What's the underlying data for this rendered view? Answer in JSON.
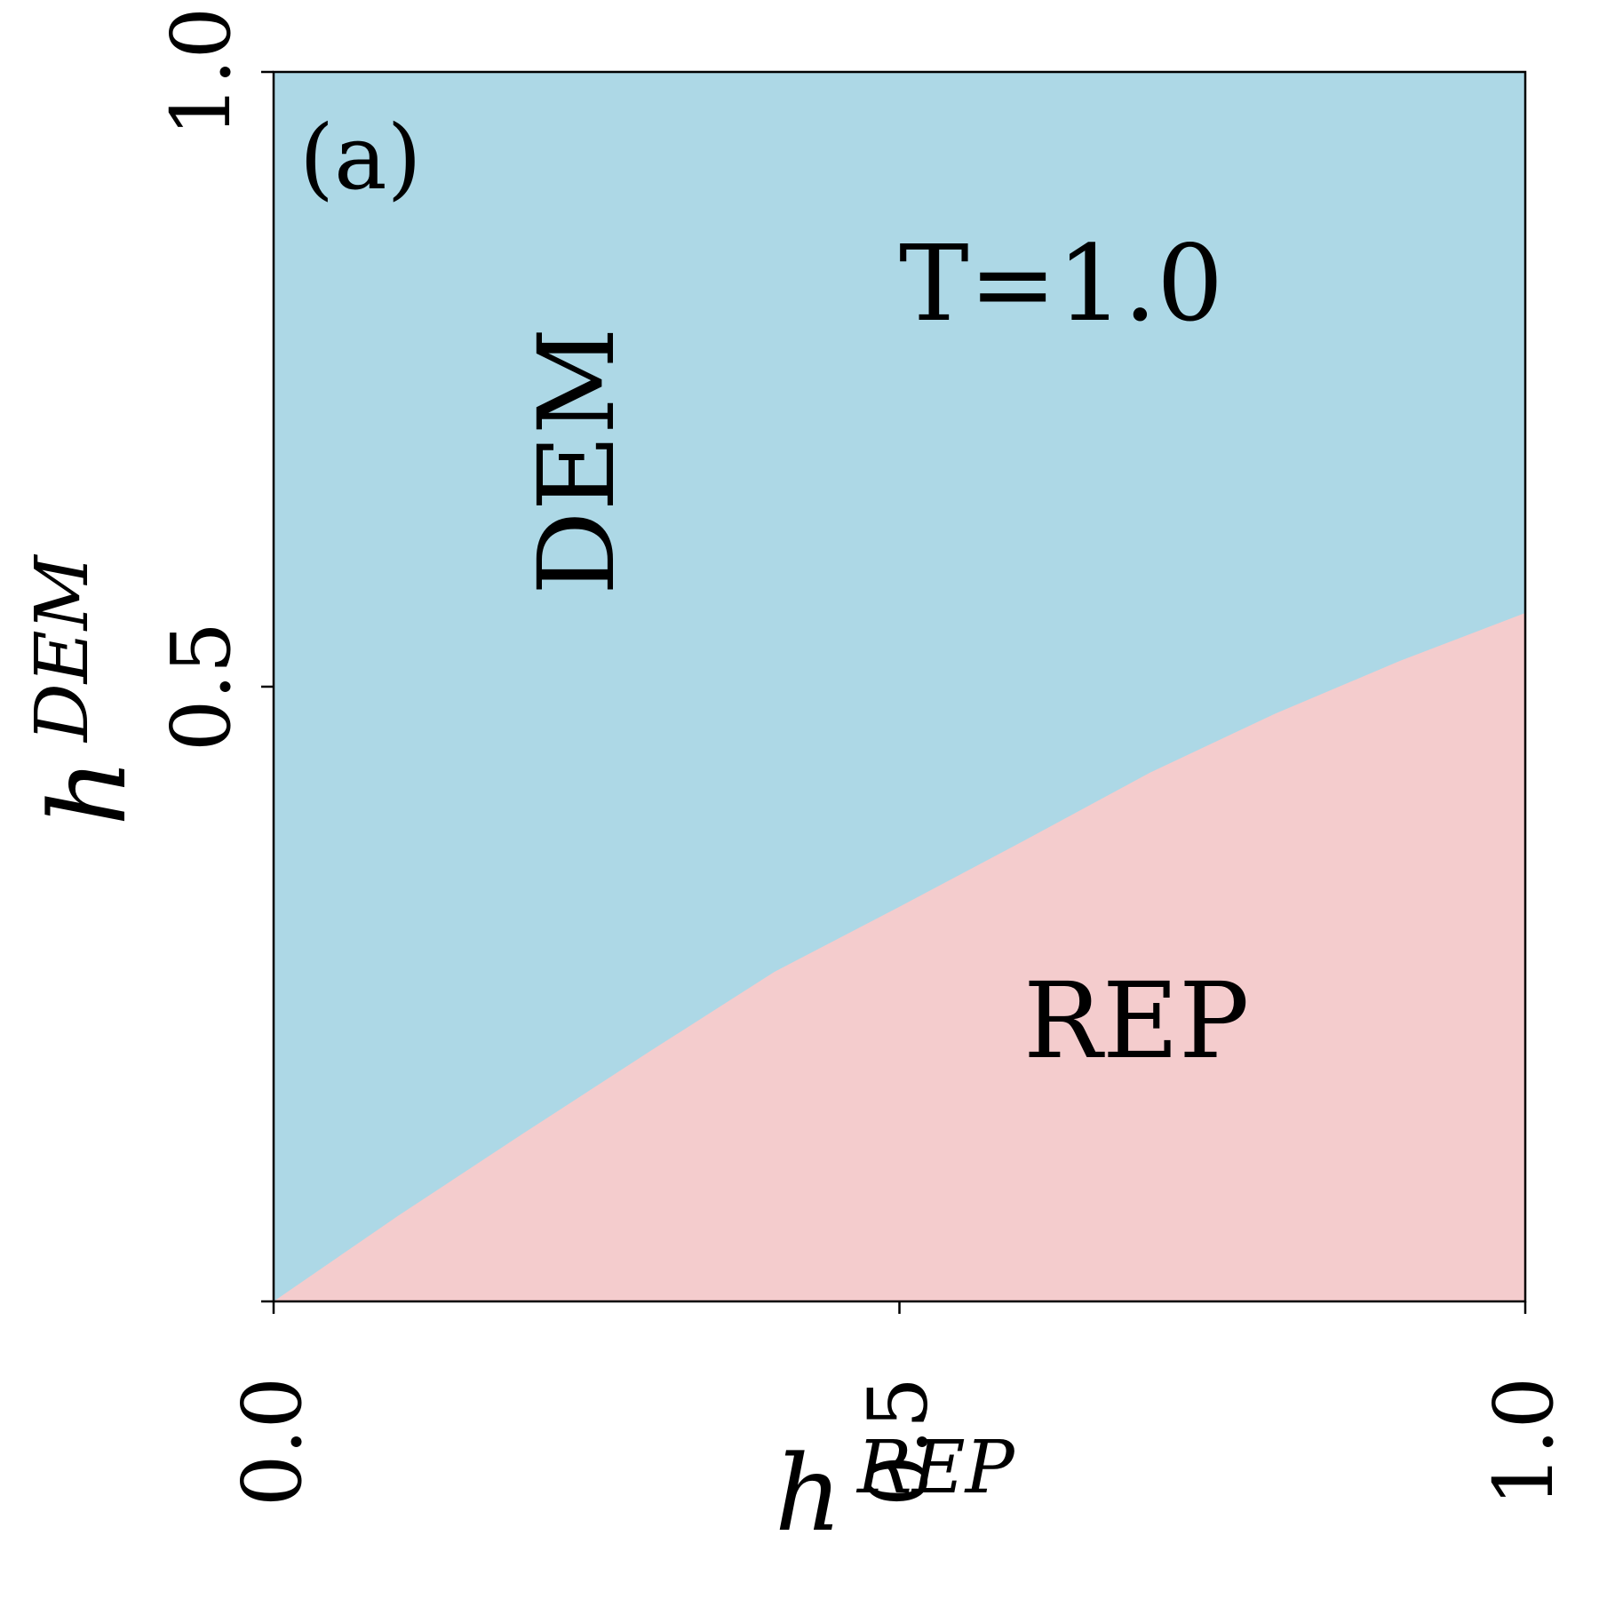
{
  "chart_data": {
    "type": "area",
    "panel_label": "(a)",
    "annotation": "T=1.0",
    "xlabel": "h",
    "xlabel_sup": "REP",
    "ylabel": "h",
    "ylabel_sup": "DEM",
    "xlim": [
      0.0,
      1.0
    ],
    "ylim": [
      0.0,
      1.0
    ],
    "xticks": [
      "0.0",
      "0.5",
      "1.0"
    ],
    "yticks": [
      "0.5",
      "1.0"
    ],
    "xtick_values": [
      0.0,
      0.5,
      1.0
    ],
    "ytick_values": [
      0.0,
      0.5,
      1.0
    ],
    "boundary": {
      "x": [
        0.0,
        0.1,
        0.2,
        0.3,
        0.4,
        0.5,
        0.6,
        0.7,
        0.8,
        0.9,
        1.0
      ],
      "y": [
        0.0,
        0.07,
        0.137,
        0.203,
        0.268,
        0.321,
        0.375,
        0.43,
        0.478,
        0.521,
        0.56
      ]
    },
    "regions": [
      {
        "name": "DEM",
        "color": "#add8e6",
        "side": "above"
      },
      {
        "name": "REP",
        "color": "#f4cccd",
        "side": "below"
      }
    ]
  }
}
